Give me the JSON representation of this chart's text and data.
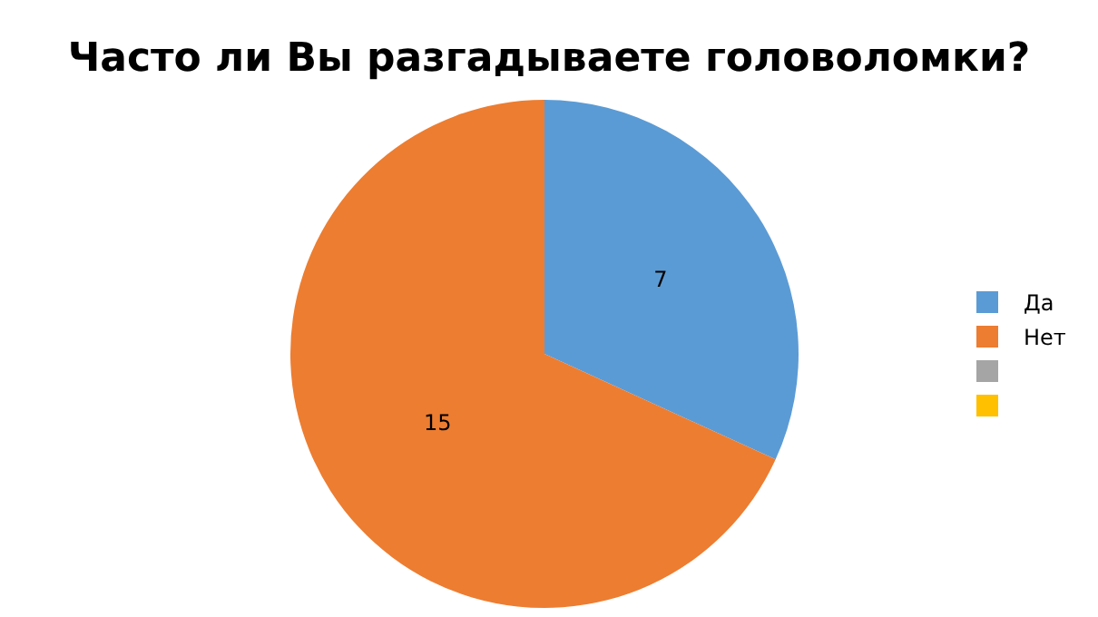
{
  "chart_data": {
    "type": "pie",
    "title": "Часто ли Вы разгадываете головоломки?",
    "categories": [
      "Да",
      "Нет",
      null,
      null
    ],
    "values": [
      7,
      15,
      0,
      0
    ],
    "colors": [
      "#5b9bd5",
      "#ed7d31",
      "#a5a5a5",
      "#ffc000"
    ],
    "data_labels": true,
    "legend": "right"
  }
}
